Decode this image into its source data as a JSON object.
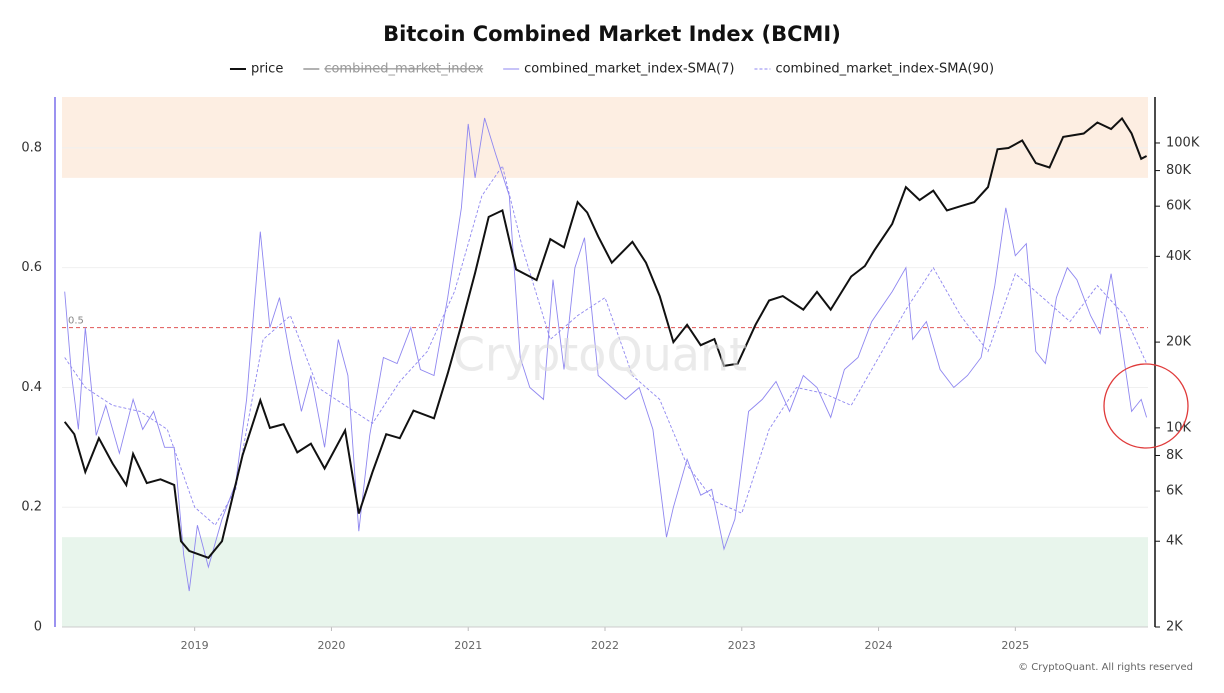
{
  "chart_data": {
    "type": "line",
    "title": "Bitcoin Combined Market Index (BCMI)",
    "watermark": "CryptoQuant",
    "credit": "© CryptoQuant. All rights reserved",
    "xlim": [
      2018.03,
      2025.97
    ],
    "xticks": [
      2019,
      2020,
      2021,
      2022,
      2023,
      2024,
      2025
    ],
    "ylim": [
      0,
      0.885
    ],
    "yticks": [
      0,
      0.2,
      0.4,
      0.6,
      0.8
    ],
    "y2lim": [
      2000,
      145000
    ],
    "y2scale": "log",
    "y2ticks": [
      {
        "value": 2000,
        "label": "2K"
      },
      {
        "value": 4000,
        "label": "4K"
      },
      {
        "value": 6000,
        "label": "6K"
      },
      {
        "value": 8000,
        "label": "8K"
      },
      {
        "value": 10000,
        "label": "10K"
      },
      {
        "value": 20000,
        "label": "20K"
      },
      {
        "value": 40000,
        "label": "40K"
      },
      {
        "value": 60000,
        "label": "60K"
      },
      {
        "value": 80000,
        "label": "80K"
      },
      {
        "value": 100000,
        "label": "100K"
      }
    ],
    "grid": true,
    "bands": [
      {
        "from": 0.75,
        "to": 0.885,
        "color": "#fdeee2"
      },
      {
        "from": 0,
        "to": 0.15,
        "color": "#e8f5ec"
      }
    ],
    "reference_line": {
      "value": 0.5,
      "color": "#e05555"
    },
    "hidden_series": [
      {
        "name": "combined_market_index",
        "color": "#666666"
      }
    ],
    "series": [
      {
        "name": "price",
        "color": "#111111",
        "axis": "y2",
        "dash": "none",
        "x": [
          2018.05,
          2018.12,
          2018.2,
          2018.3,
          2018.4,
          2018.5,
          2018.55,
          2018.65,
          2018.75,
          2018.85,
          2018.9,
          2018.96,
          2019.1,
          2019.2,
          2019.35,
          2019.48,
          2019.55,
          2019.65,
          2019.75,
          2019.85,
          2019.95,
          2020.1,
          2020.2,
          2020.3,
          2020.4,
          2020.5,
          2020.6,
          2020.75,
          2020.85,
          2020.95,
          2021.05,
          2021.15,
          2021.25,
          2021.35,
          2021.5,
          2021.6,
          2021.7,
          2021.8,
          2021.87,
          2021.95,
          2022.05,
          2022.2,
          2022.3,
          2022.4,
          2022.5,
          2022.6,
          2022.7,
          2022.8,
          2022.87,
          2022.97,
          2023.1,
          2023.2,
          2023.3,
          2023.45,
          2023.55,
          2023.65,
          2023.8,
          2023.9,
          2023.97,
          2024.1,
          2024.2,
          2024.3,
          2024.4,
          2024.5,
          2024.6,
          2024.7,
          2024.8,
          2024.87,
          2024.95,
          2025.05,
          2025.15,
          2025.25,
          2025.35,
          2025.5,
          2025.6,
          2025.7,
          2025.78,
          2025.85,
          2025.92,
          2025.96
        ],
        "values": [
          10500,
          9500,
          7000,
          9200,
          7500,
          6300,
          8100,
          6400,
          6600,
          6300,
          4000,
          3700,
          3500,
          4000,
          8000,
          12500,
          10000,
          10300,
          8200,
          8800,
          7200,
          9800,
          5000,
          7000,
          9500,
          9200,
          11500,
          10800,
          15500,
          23000,
          35000,
          55000,
          58000,
          36000,
          33000,
          46000,
          43000,
          62000,
          57000,
          47000,
          38000,
          45000,
          38000,
          29000,
          20000,
          23000,
          19500,
          20500,
          16500,
          16800,
          23000,
          28000,
          29000,
          26000,
          30000,
          26000,
          34000,
          37000,
          42000,
          52000,
          70000,
          63000,
          68000,
          58000,
          60000,
          62000,
          70000,
          95000,
          96000,
          102000,
          85000,
          82000,
          105000,
          108000,
          118000,
          112000,
          122000,
          108000,
          88000,
          90000
        ]
      },
      {
        "name": "combined_market_index-SMA(7)",
        "color": "#8f87f0",
        "axis": "y",
        "dash": "none",
        "x": [
          2018.05,
          2018.1,
          2018.15,
          2018.2,
          2018.28,
          2018.35,
          2018.45,
          2018.55,
          2018.62,
          2018.7,
          2018.78,
          2018.85,
          2018.92,
          2018.96,
          2019.02,
          2019.1,
          2019.2,
          2019.3,
          2019.38,
          2019.48,
          2019.55,
          2019.62,
          2019.7,
          2019.78,
          2019.85,
          2019.95,
          2020.05,
          2020.12,
          2020.2,
          2020.28,
          2020.38,
          2020.48,
          2020.58,
          2020.65,
          2020.75,
          2020.85,
          2020.95,
          2021.0,
          2021.05,
          2021.12,
          2021.2,
          2021.3,
          2021.38,
          2021.45,
          2021.55,
          2021.62,
          2021.7,
          2021.78,
          2021.85,
          2021.95,
          2022.05,
          2022.15,
          2022.25,
          2022.35,
          2022.45,
          2022.5,
          2022.6,
          2022.7,
          2022.78,
          2022.87,
          2022.95,
          2023.05,
          2023.15,
          2023.25,
          2023.35,
          2023.45,
          2023.55,
          2023.65,
          2023.75,
          2023.85,
          2023.95,
          2024.1,
          2024.2,
          2024.25,
          2024.35,
          2024.45,
          2024.55,
          2024.65,
          2024.75,
          2024.85,
          2024.93,
          2025.0,
          2025.08,
          2025.15,
          2025.22,
          2025.3,
          2025.38,
          2025.45,
          2025.55,
          2025.62,
          2025.7,
          2025.78,
          2025.85,
          2025.92,
          2025.96
        ],
        "values": [
          0.56,
          0.42,
          0.33,
          0.5,
          0.32,
          0.37,
          0.29,
          0.38,
          0.33,
          0.36,
          0.3,
          0.3,
          0.12,
          0.06,
          0.17,
          0.1,
          0.18,
          0.24,
          0.38,
          0.66,
          0.5,
          0.55,
          0.45,
          0.36,
          0.42,
          0.3,
          0.48,
          0.42,
          0.16,
          0.32,
          0.45,
          0.44,
          0.5,
          0.43,
          0.42,
          0.55,
          0.7,
          0.84,
          0.75,
          0.85,
          0.79,
          0.72,
          0.45,
          0.4,
          0.38,
          0.58,
          0.43,
          0.6,
          0.65,
          0.42,
          0.4,
          0.38,
          0.4,
          0.33,
          0.15,
          0.2,
          0.28,
          0.22,
          0.23,
          0.13,
          0.18,
          0.36,
          0.38,
          0.41,
          0.36,
          0.42,
          0.4,
          0.35,
          0.43,
          0.45,
          0.51,
          0.56,
          0.6,
          0.48,
          0.51,
          0.43,
          0.4,
          0.42,
          0.45,
          0.57,
          0.7,
          0.62,
          0.64,
          0.46,
          0.44,
          0.55,
          0.6,
          0.58,
          0.52,
          0.49,
          0.59,
          0.47,
          0.36,
          0.38,
          0.35
        ]
      },
      {
        "name": "combined_market_index-SMA(90)",
        "color": "#8f87f0",
        "axis": "y",
        "dash": "3 2",
        "x": [
          2018.05,
          2018.2,
          2018.4,
          2018.6,
          2018.8,
          2019.0,
          2019.15,
          2019.3,
          2019.5,
          2019.7,
          2019.9,
          2020.1,
          2020.3,
          2020.5,
          2020.7,
          2020.9,
          2021.1,
          2021.25,
          2021.4,
          2021.6,
          2021.8,
          2022.0,
          2022.2,
          2022.4,
          2022.6,
          2022.8,
          2023.0,
          2023.2,
          2023.4,
          2023.6,
          2023.8,
          2024.0,
          2024.2,
          2024.4,
          2024.6,
          2024.8,
          2025.0,
          2025.2,
          2025.4,
          2025.6,
          2025.8,
          2025.96
        ],
        "values": [
          0.45,
          0.4,
          0.37,
          0.36,
          0.33,
          0.2,
          0.17,
          0.23,
          0.48,
          0.52,
          0.4,
          0.37,
          0.34,
          0.41,
          0.46,
          0.56,
          0.72,
          0.77,
          0.63,
          0.48,
          0.52,
          0.55,
          0.42,
          0.38,
          0.27,
          0.21,
          0.19,
          0.33,
          0.4,
          0.39,
          0.37,
          0.45,
          0.53,
          0.6,
          0.52,
          0.46,
          0.59,
          0.55,
          0.51,
          0.57,
          0.52,
          0.44
        ]
      }
    ]
  }
}
